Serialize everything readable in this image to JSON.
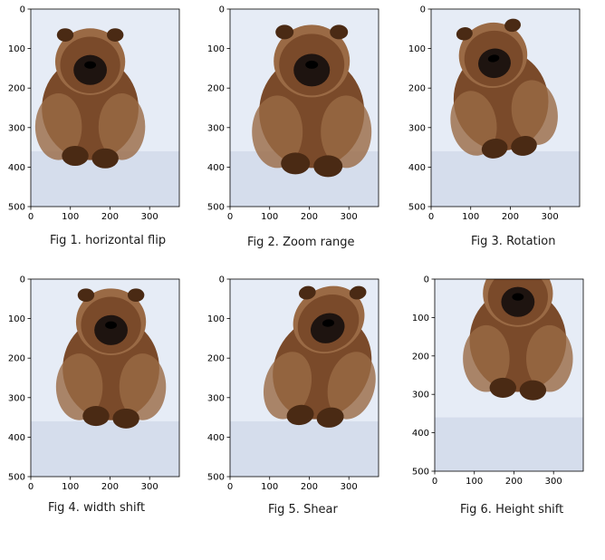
{
  "panels": [
    {
      "caption": "Fig 1. horizontal flip",
      "transform": "flip"
    },
    {
      "caption": "Fig 2. Zoom range",
      "transform": "zoom"
    },
    {
      "caption": "Fig 3. Rotation",
      "transform": "rotate"
    },
    {
      "caption": "Fig 4. width shift",
      "transform": "wshift"
    },
    {
      "caption": "Fig 5. Shear",
      "transform": "shear"
    },
    {
      "caption": "Fig 6. Height shift",
      "transform": "hshift"
    }
  ],
  "axes": {
    "x_ticks": [
      "0",
      "100",
      "200",
      "300"
    ],
    "y_ticks": [
      "0",
      "100",
      "200",
      "300",
      "400",
      "500"
    ],
    "x_values": [
      0,
      100,
      200,
      300
    ],
    "y_values": [
      0,
      100,
      200,
      300,
      400,
      500
    ],
    "xlim": [
      0,
      375
    ],
    "ylim": [
      500,
      0
    ]
  },
  "colors": {
    "fur": "#7a4a2a",
    "fur_dark": "#4a2a14",
    "fur_light": "#9a6a45",
    "face": "#1e1410",
    "snow": "#e6ecf6",
    "snow_shadow": "#c9d3e6"
  }
}
